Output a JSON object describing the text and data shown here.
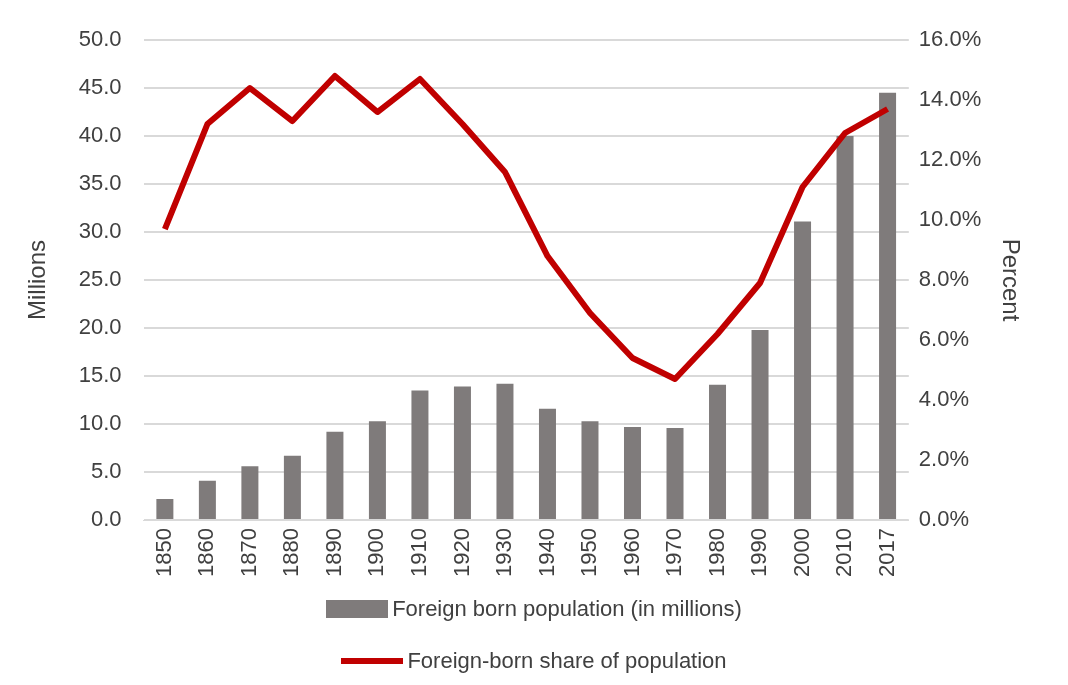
{
  "chart_data": {
    "type": "bar",
    "categories": [
      "1850",
      "1860",
      "1870",
      "1880",
      "1890",
      "1900",
      "1910",
      "1920",
      "1930",
      "1940",
      "1950",
      "1960",
      "1970",
      "1980",
      "1990",
      "2000",
      "2010",
      "2017"
    ],
    "series": [
      {
        "name": "Foreign born population (in millions)",
        "type": "bar",
        "color": "#7f7b7b",
        "values": [
          2.2,
          4.1,
          5.6,
          6.7,
          9.2,
          10.3,
          13.5,
          13.9,
          14.2,
          11.6,
          10.3,
          9.7,
          9.6,
          14.1,
          19.8,
          31.1,
          40.0,
          44.5
        ]
      },
      {
        "name": "Foreign-born share of population",
        "type": "line",
        "axis": "y2",
        "color": "#c00000",
        "values": [
          9.7,
          13.2,
          14.4,
          13.3,
          14.8,
          13.6,
          14.7,
          13.2,
          11.6,
          8.8,
          6.9,
          5.4,
          4.7,
          6.2,
          7.9,
          11.1,
          12.9,
          13.7
        ]
      }
    ],
    "ylabel": "Millions",
    "y2label": "Percent",
    "ylim": [
      0,
      50
    ],
    "yticks": [
      {
        "value": 0,
        "label": "0.0"
      },
      {
        "value": 5,
        "label": "5.0"
      },
      {
        "value": 10,
        "label": "10.0"
      },
      {
        "value": 15,
        "label": "15.0"
      },
      {
        "value": 20,
        "label": "20.0"
      },
      {
        "value": 25,
        "label": "25.0"
      },
      {
        "value": 30,
        "label": "30.0"
      },
      {
        "value": 35,
        "label": "35.0"
      },
      {
        "value": 40,
        "label": "40.0"
      },
      {
        "value": 45,
        "label": "45.0"
      },
      {
        "value": 50,
        "label": "50.0"
      }
    ],
    "y2lim": [
      0,
      16
    ],
    "y2ticks": [
      {
        "value": 0,
        "label": "0.0%"
      },
      {
        "value": 2,
        "label": "2.0%"
      },
      {
        "value": 4,
        "label": "4.0%"
      },
      {
        "value": 6,
        "label": "6.0%"
      },
      {
        "value": 8,
        "label": "8.0%"
      },
      {
        "value": 10,
        "label": "10.0%"
      },
      {
        "value": 12,
        "label": "12.0%"
      },
      {
        "value": 14,
        "label": "14.0%"
      },
      {
        "value": 16,
        "label": "16.0%"
      }
    ],
    "grid": "y",
    "legend": "bottom",
    "marker": "none",
    "line_style": "solid"
  }
}
